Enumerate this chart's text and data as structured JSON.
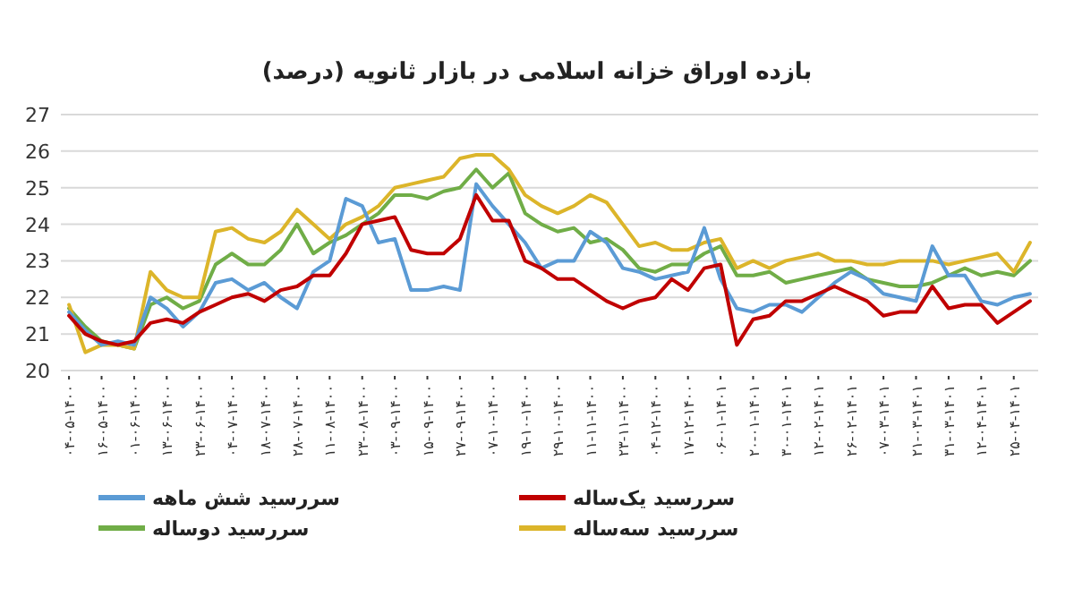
{
  "chart_data": {
    "type": "line",
    "title": "بازده اوراق خزانه اسلامی در بازار ثانویه (درصد)",
    "categories": [
      "۰۴-۰۵-۱۴۰۰",
      null,
      "۱۶-۰۵-۱۴۰۰",
      null,
      "۰۱-۰۶-۱۴۰۰",
      null,
      "۱۳-۰۶-۱۴۰۰",
      null,
      "۲۳-۰۶-۱۴۰۰",
      null,
      "۰۴-۰۷-۱۴۰۰",
      null,
      "۱۸-۰۷-۱۴۰۰",
      null,
      "۲۸-۰۷-۱۴۰۰",
      null,
      "۱۱-۰۸-۱۴۰۰",
      null,
      "۲۳-۰۸-۱۴۰۰",
      null,
      "۰۳-۰۹-۱۴۰۰",
      null,
      "۱۵-۰۹-۱۴۰۰",
      null,
      "۲۷-۰۹-۱۴۰۰",
      null,
      "۰۷-۱۰-۱۴۰۰",
      null,
      "۱۹-۱۰-۱۴۰۰",
      null,
      "۲۹-۱۰-۱۴۰۰",
      null,
      "۱۱-۱۱-۱۴۰۰",
      null,
      "۲۳-۱۱-۱۴۰۰",
      null,
      "۰۴-۱۲-۱۴۰۰",
      null,
      "۱۷-۱۲-۱۴۰۰",
      null,
      "۰۶-۰۱-۱۴۰۱",
      null,
      "۲۰-۰۱-۱۴۰۱",
      null,
      "۳۰-۰۱-۱۴۰۱",
      null,
      "۱۲-۰۲-۱۴۰۱",
      null,
      "۲۶-۰۲-۱۴۰۱",
      null,
      "۰۷-۰۳-۱۴۰۱",
      null,
      "۲۱-۰۳-۱۴۰۱",
      null,
      "۳۱-۰۳-۱۴۰۱",
      null,
      "۱۲-۰۴-۱۴۰۱",
      null,
      "۲۵-۰۴-۱۴۰۱",
      null
    ],
    "series": [
      {
        "name": "سررسید یک‌ساله",
        "color": "#c00000",
        "values": [
          21.5,
          21.0,
          20.8,
          20.7,
          20.8,
          21.3,
          21.4,
          21.3,
          21.6,
          21.8,
          22.0,
          22.1,
          21.9,
          22.2,
          22.3,
          22.6,
          22.6,
          23.2,
          24.0,
          24.1,
          24.2,
          23.3,
          23.2,
          23.2,
          23.6,
          24.8,
          24.1,
          24.1,
          23.0,
          22.8,
          22.5,
          22.5,
          22.2,
          21.9,
          21.7,
          21.9,
          22.0,
          22.5,
          22.2,
          22.8,
          22.9,
          20.7,
          21.4,
          21.5,
          21.9,
          21.9,
          22.1,
          22.3,
          22.1,
          21.9,
          21.5,
          21.6,
          21.6,
          22.3,
          21.7,
          21.8,
          21.8,
          21.3,
          21.6,
          21.9
        ]
      },
      {
        "name": "سررسید شش ماهه",
        "color": "#5b9bd5",
        "values": [
          21.6,
          21.1,
          20.7,
          20.8,
          20.7,
          22.0,
          21.7,
          21.2,
          21.6,
          22.4,
          22.5,
          22.2,
          22.4,
          22.0,
          21.7,
          22.7,
          23.0,
          24.7,
          24.5,
          23.5,
          23.6,
          22.2,
          22.2,
          22.3,
          22.2,
          25.1,
          24.5,
          24.0,
          23.5,
          22.8,
          23.0,
          23.0,
          23.8,
          23.5,
          22.8,
          22.7,
          22.5,
          22.6,
          22.7,
          23.9,
          22.5,
          21.7,
          21.6,
          21.8,
          21.8,
          21.6,
          22.0,
          22.4,
          22.7,
          22.5,
          22.1,
          22.0,
          21.9,
          23.4,
          22.6,
          22.6,
          21.9,
          21.8,
          22.0,
          22.1
        ]
      },
      {
        "name": "سررسید سه‌ساله",
        "color": "#dcb52a",
        "values": [
          21.8,
          20.5,
          20.7,
          20.7,
          20.6,
          22.7,
          22.2,
          22.0,
          22.0,
          23.8,
          23.9,
          23.6,
          23.5,
          23.8,
          24.4,
          24.0,
          23.6,
          24.0,
          24.2,
          24.5,
          25.0,
          25.1,
          25.2,
          25.3,
          25.8,
          25.9,
          25.9,
          25.5,
          24.8,
          24.5,
          24.3,
          24.5,
          24.8,
          24.6,
          24.0,
          23.4,
          23.5,
          23.3,
          23.3,
          23.5,
          23.6,
          22.8,
          23.0,
          22.8,
          23.0,
          23.1,
          23.2,
          23.0,
          23.0,
          22.9,
          22.9,
          23.0,
          23.0,
          23.0,
          22.9,
          23.0,
          23.1,
          23.2,
          22.7,
          23.5
        ]
      },
      {
        "name": "سررسید دوساله",
        "color": "#70ad47",
        "values": [
          21.7,
          21.2,
          20.8,
          20.7,
          20.6,
          21.8,
          22.0,
          21.7,
          21.9,
          22.9,
          23.2,
          22.9,
          22.9,
          23.3,
          24.0,
          23.2,
          23.5,
          23.7,
          24.0,
          24.3,
          24.8,
          24.8,
          24.7,
          24.9,
          25.0,
          25.5,
          25.0,
          25.4,
          24.3,
          24.0,
          23.8,
          23.9,
          23.5,
          23.6,
          23.3,
          22.8,
          22.7,
          22.9,
          22.9,
          23.2,
          23.4,
          22.6,
          22.6,
          22.7,
          22.4,
          22.5,
          22.6,
          22.7,
          22.8,
          22.5,
          22.4,
          22.3,
          22.3,
          22.4,
          22.6,
          22.8,
          22.6,
          22.7,
          22.6,
          23.0
        ]
      }
    ],
    "ylim": [
      20,
      27
    ],
    "yticks": [
      20,
      21,
      22,
      23,
      24,
      25,
      26,
      27
    ],
    "grid": "y",
    "legend": "bottom"
  }
}
